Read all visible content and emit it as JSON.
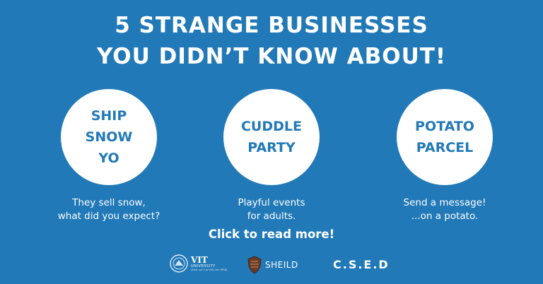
{
  "title": {
    "line1": "5 STRANGE BUSINESSES",
    "line2": "YOU DIDN’T KNOW ABOUT!"
  },
  "businesses": [
    {
      "name_lines": [
        "SHIP",
        "SNOW",
        "YO"
      ],
      "desc_lines": [
        "They sell snow,",
        "what did you expect?"
      ]
    },
    {
      "name_lines": [
        "CUDDLE",
        "PARTY"
      ],
      "desc_lines": [
        "Playful events",
        "for adults."
      ]
    },
    {
      "name_lines": [
        "POTATO",
        "PARCEL"
      ],
      "desc_lines": [
        "Send a message!",
        "...on a potato."
      ]
    }
  ],
  "cta_label": "Click to read more!",
  "logos": {
    "vit": {
      "name": "VIT",
      "subtitle": "UNIVERSITY",
      "tagline": "(Estd. u/s 3 of UGC Act 1956)"
    },
    "sheild": {
      "name": "SHEILD"
    },
    "csed": {
      "name": "C.S.E.D"
    }
  },
  "colors": {
    "background": "#2179b8",
    "circle": "#ffffff",
    "text": "#ffffff"
  }
}
